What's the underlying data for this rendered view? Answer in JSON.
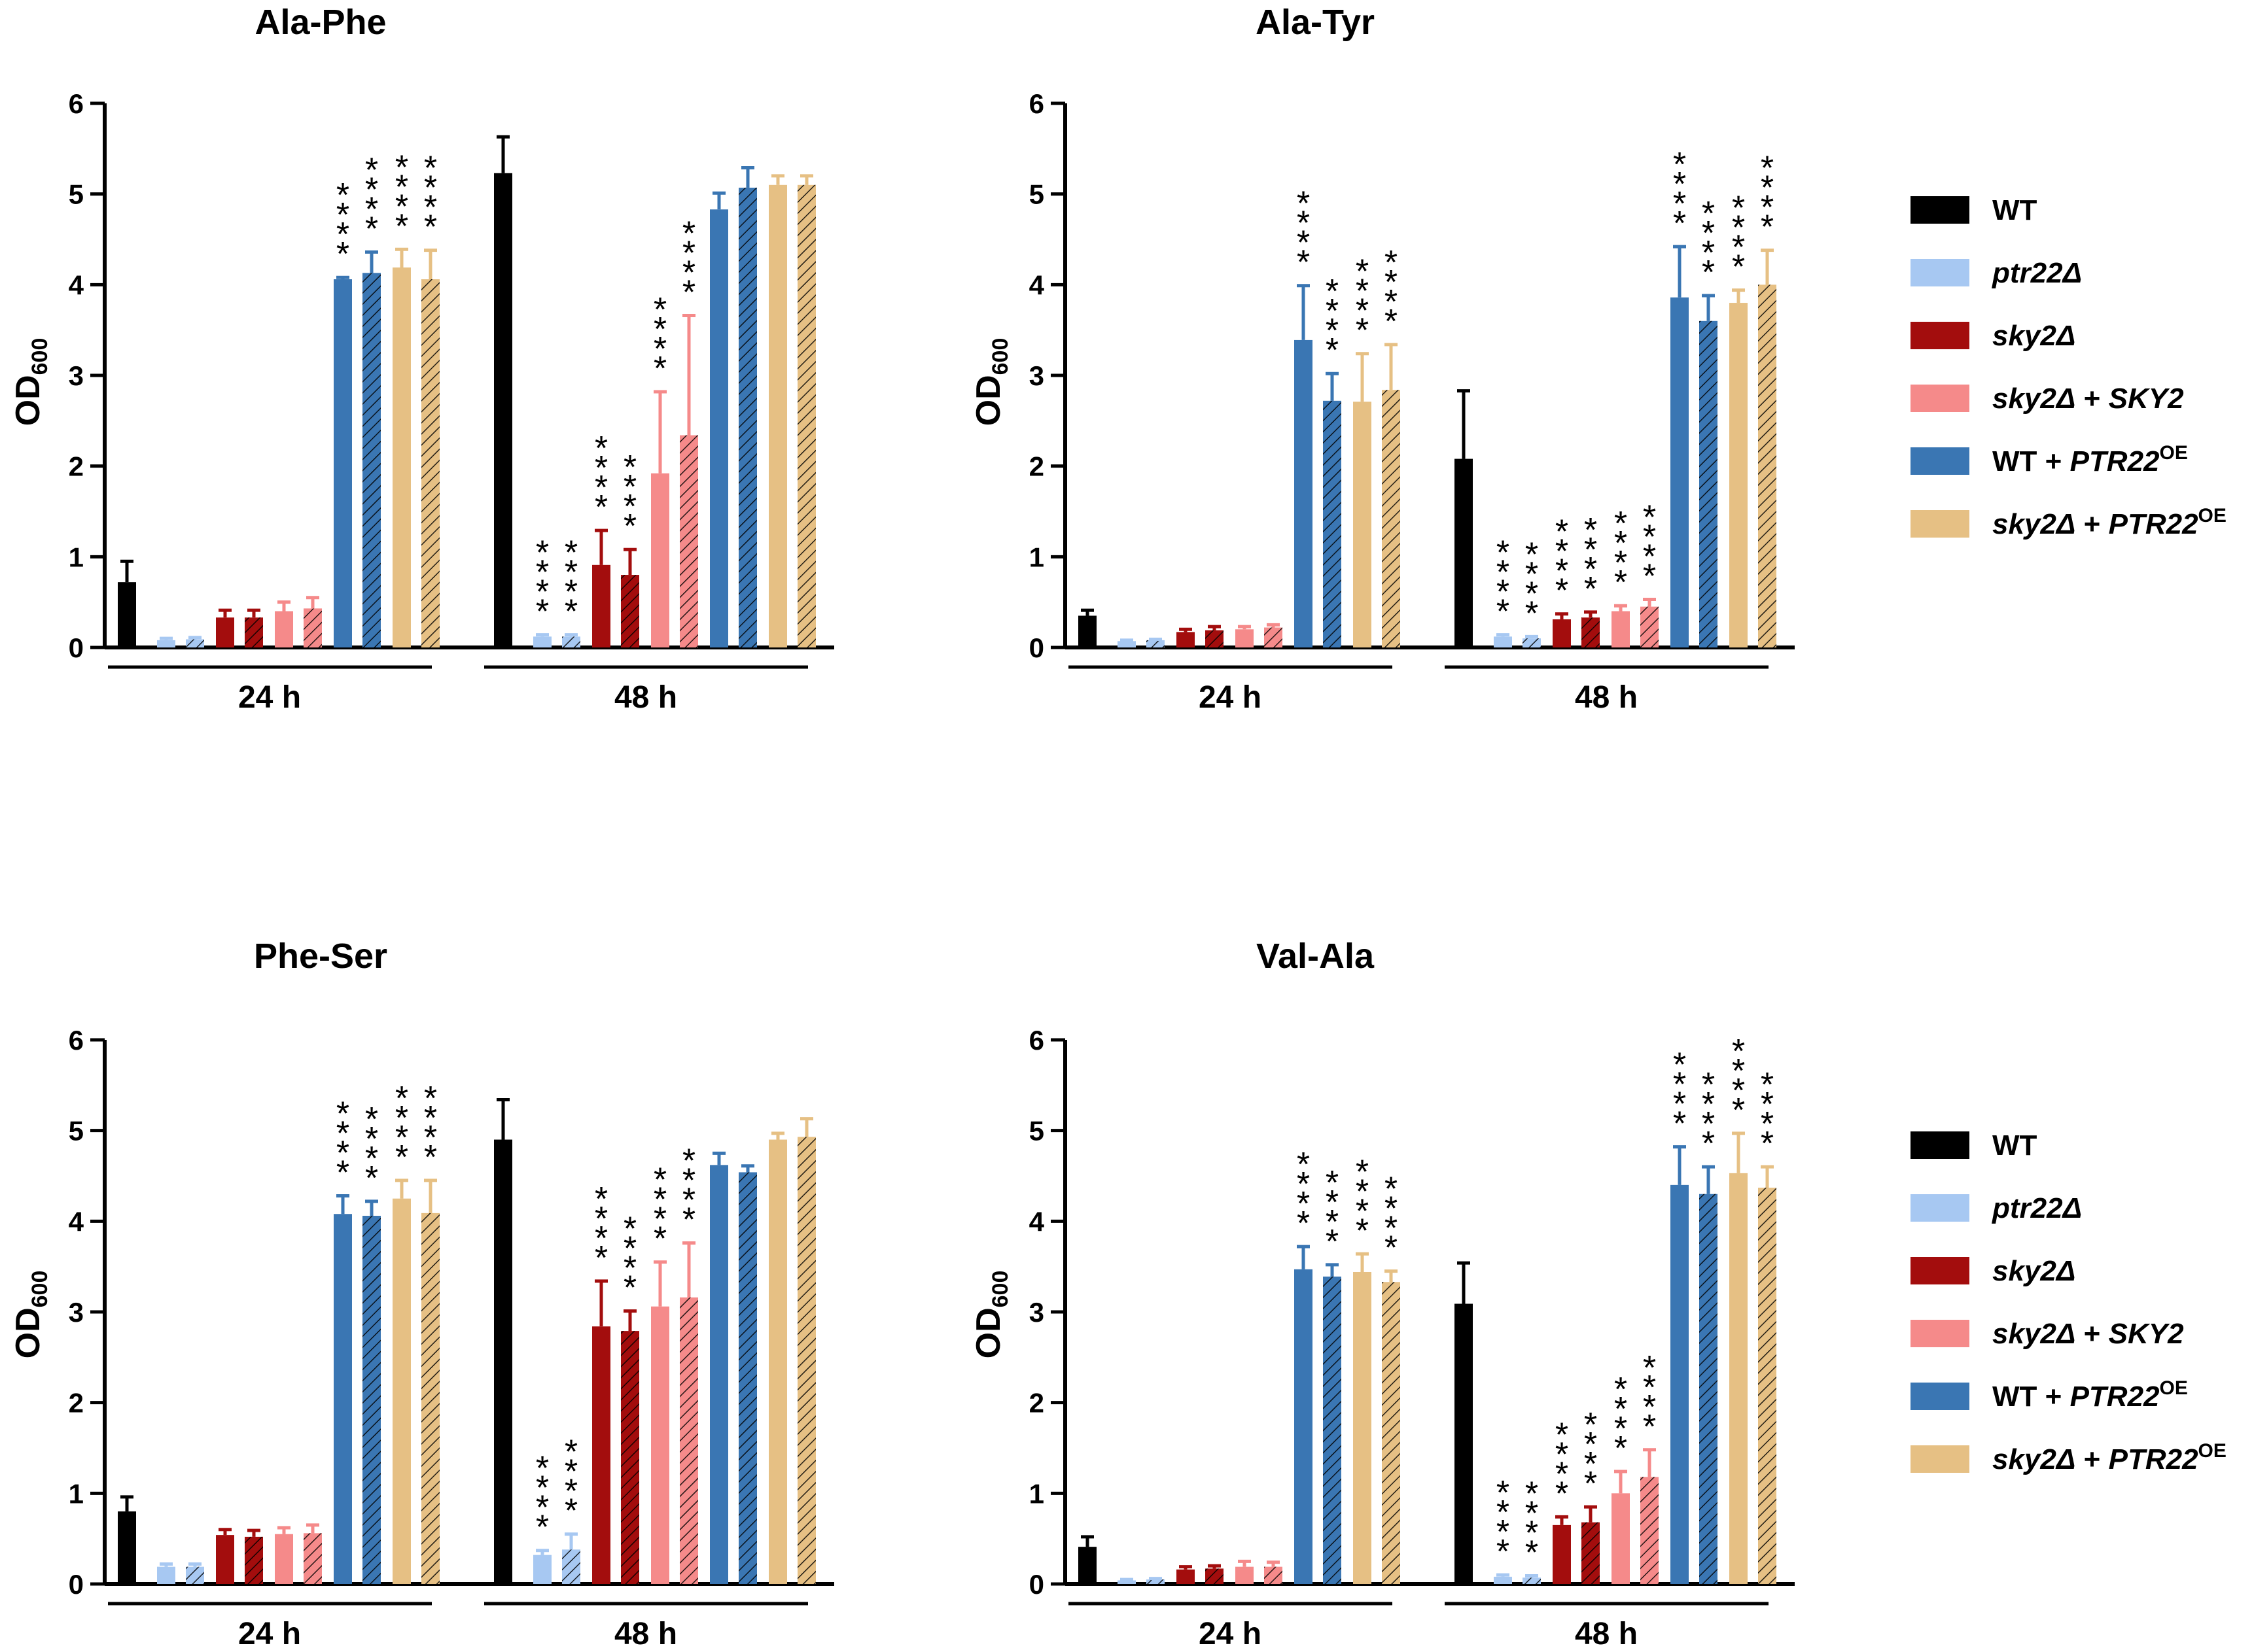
{
  "series_colors": [
    "#000000",
    "#a7c8f2",
    "#a30d0d",
    "#f58a8a",
    "#3a76b3",
    "#e6c084"
  ],
  "legend": {
    "items": [
      {
        "parts": [
          {
            "t": "WT",
            "style": "normal"
          }
        ]
      },
      {
        "parts": [
          {
            "t": "ptr22Δ",
            "style": "italic"
          }
        ]
      },
      {
        "parts": [
          {
            "t": "sky2Δ",
            "style": "italic"
          }
        ]
      },
      {
        "parts": [
          {
            "t": "sky2Δ",
            "style": "italic"
          },
          {
            "t": " + ",
            "style": "normal"
          },
          {
            "t": "SKY2",
            "style": "italic"
          }
        ]
      },
      {
        "parts": [
          {
            "t": "WT + ",
            "style": "normal"
          },
          {
            "t": "PTR22",
            "style": "italic"
          },
          {
            "t": "OE",
            "style": "sup"
          }
        ]
      },
      {
        "parts": [
          {
            "t": "sky2Δ",
            "style": "italic"
          },
          {
            "t": " + ",
            "style": "normal"
          },
          {
            "t": "PTR22",
            "style": "italic"
          },
          {
            "t": "OE",
            "style": "sup"
          }
        ]
      }
    ]
  },
  "significance_mark": "****",
  "chart_data": [
    {
      "type": "bar",
      "title": "Ala-Phe",
      "ylabel": "OD",
      "ylabel_sub": "600",
      "ylim": [
        0,
        6
      ],
      "yticks": [
        "0",
        "1",
        "2",
        "3",
        "4",
        "5",
        "6"
      ],
      "groups": [
        "24 h",
        "48 h"
      ],
      "series": [
        "WT",
        "ptr22Δ",
        "sky2Δ",
        "sky2Δ + SKY2",
        "WT + PTR22OE",
        "sky2Δ + PTR22OE"
      ],
      "bars": {
        "24 h": {
          "values": [
            0.72,
            0.08,
            0.09,
            0.33,
            0.33,
            0.4,
            0.43,
            4.06,
            4.13,
            4.19,
            4.06
          ],
          "errors": [
            0.23,
            0.02,
            0.02,
            0.08,
            0.08,
            0.1,
            0.12,
            0.02,
            0.23,
            0.2,
            0.32
          ],
          "sig": [
            false,
            false,
            false,
            false,
            false,
            false,
            false,
            true,
            true,
            true,
            true
          ]
        },
        "48 h": {
          "values": [
            5.23,
            0.12,
            0.12,
            0.91,
            0.8,
            1.92,
            2.34,
            4.83,
            5.07,
            5.1,
            5.1
          ],
          "errors": [
            0.4,
            0.02,
            0.02,
            0.38,
            0.28,
            0.9,
            1.32,
            0.18,
            0.22,
            0.1,
            0.1
          ],
          "sig": [
            false,
            true,
            true,
            true,
            true,
            true,
            true,
            false,
            false,
            false,
            false
          ]
        }
      }
    },
    {
      "type": "bar",
      "title": "Ala-Tyr",
      "ylabel": "OD",
      "ylabel_sub": "600",
      "ylim": [
        0,
        6
      ],
      "yticks": [
        "0",
        "1",
        "2",
        "3",
        "4",
        "5",
        "6"
      ],
      "groups": [
        "24 h",
        "48 h"
      ],
      "series": [
        "WT",
        "ptr22Δ",
        "sky2Δ",
        "sky2Δ + SKY2",
        "WT + PTR22OE",
        "sky2Δ + PTR22OE"
      ],
      "bars": {
        "24 h": {
          "values": [
            0.35,
            0.07,
            0.08,
            0.17,
            0.19,
            0.2,
            0.22,
            3.39,
            2.72,
            2.71,
            2.84
          ],
          "errors": [
            0.06,
            0.01,
            0.01,
            0.03,
            0.04,
            0.03,
            0.03,
            0.6,
            0.3,
            0.53,
            0.5
          ],
          "sig": [
            false,
            false,
            false,
            false,
            false,
            false,
            false,
            true,
            true,
            true,
            true
          ]
        },
        "48 h": {
          "values": [
            2.08,
            0.12,
            0.1,
            0.31,
            0.33,
            0.4,
            0.45,
            3.86,
            3.6,
            3.8,
            4.0
          ],
          "errors": [
            0.75,
            0.02,
            0.02,
            0.06,
            0.06,
            0.06,
            0.08,
            0.56,
            0.28,
            0.14,
            0.38
          ],
          "sig": [
            false,
            true,
            true,
            true,
            true,
            true,
            true,
            true,
            true,
            true,
            true
          ]
        }
      }
    },
    {
      "type": "bar",
      "title": "Phe-Ser",
      "ylabel": "OD",
      "ylabel_sub": "600",
      "ylim": [
        0,
        6
      ],
      "yticks": [
        "0",
        "1",
        "2",
        "3",
        "4",
        "5",
        "6"
      ],
      "groups": [
        "24 h",
        "48 h"
      ],
      "series": [
        "WT",
        "ptr22Δ",
        "sky2Δ",
        "sky2Δ + SKY2",
        "WT + PTR22OE",
        "sky2Δ + PTR22OE"
      ],
      "bars": {
        "24 h": {
          "values": [
            0.8,
            0.19,
            0.19,
            0.54,
            0.52,
            0.55,
            0.56,
            4.08,
            4.06,
            4.25,
            4.09
          ],
          "errors": [
            0.16,
            0.03,
            0.03,
            0.06,
            0.07,
            0.07,
            0.09,
            0.2,
            0.16,
            0.2,
            0.36
          ],
          "sig": [
            false,
            false,
            false,
            false,
            false,
            false,
            false,
            true,
            true,
            true,
            true
          ]
        },
        "48 h": {
          "values": [
            4.9,
            0.32,
            0.38,
            2.84,
            2.79,
            3.06,
            3.16,
            4.62,
            4.54,
            4.9,
            4.93
          ],
          "errors": [
            0.44,
            0.05,
            0.17,
            0.5,
            0.22,
            0.49,
            0.6,
            0.13,
            0.07,
            0.07,
            0.2
          ],
          "sig": [
            false,
            true,
            true,
            true,
            true,
            true,
            true,
            false,
            false,
            false,
            false
          ]
        }
      }
    },
    {
      "type": "bar",
      "title": "Val-Ala",
      "ylabel": "OD",
      "ylabel_sub": "600",
      "ylim": [
        0,
        6
      ],
      "yticks": [
        "0",
        "1",
        "2",
        "3",
        "4",
        "5",
        "6"
      ],
      "groups": [
        "24 h",
        "48 h"
      ],
      "series": [
        "WT",
        "ptr22Δ",
        "sky2Δ",
        "sky2Δ + SKY2",
        "WT + PTR22OE",
        "sky2Δ + PTR22OE"
      ],
      "bars": {
        "24 h": {
          "values": [
            0.41,
            0.04,
            0.05,
            0.16,
            0.17,
            0.19,
            0.19,
            3.47,
            3.39,
            3.44,
            3.33
          ],
          "errors": [
            0.11,
            0.01,
            0.01,
            0.03,
            0.03,
            0.06,
            0.05,
            0.25,
            0.13,
            0.2,
            0.12
          ],
          "sig": [
            false,
            false,
            false,
            false,
            false,
            false,
            false,
            true,
            true,
            true,
            true
          ]
        },
        "48 h": {
          "values": [
            3.09,
            0.08,
            0.07,
            0.65,
            0.68,
            1.0,
            1.18,
            4.4,
            4.3,
            4.53,
            4.37
          ],
          "errors": [
            0.45,
            0.02,
            0.02,
            0.09,
            0.17,
            0.24,
            0.3,
            0.42,
            0.3,
            0.44,
            0.23
          ],
          "sig": [
            false,
            true,
            true,
            true,
            true,
            true,
            true,
            true,
            true,
            true,
            true
          ]
        }
      }
    }
  ]
}
